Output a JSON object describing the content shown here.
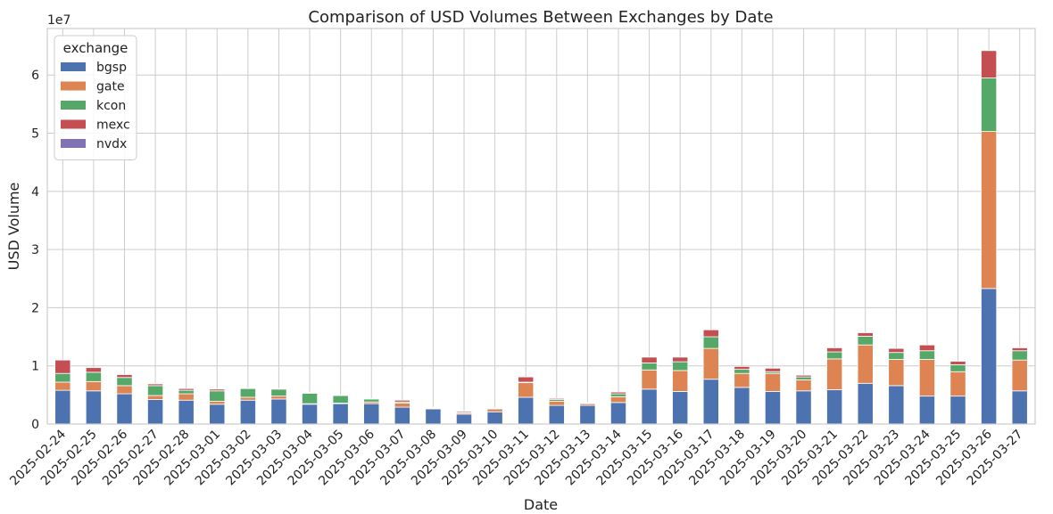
{
  "chart_data": {
    "type": "bar",
    "stacked": true,
    "title": "Comparison of USD Volumes Between Exchanges by Date",
    "xlabel": "Date",
    "ylabel": "USD Volume",
    "offset_label": "1e7",
    "ylim": [
      0,
      6.8
    ],
    "yticks": [
      0,
      1,
      2,
      3,
      4,
      5,
      6
    ],
    "grid": true,
    "legend": {
      "title": "exchange",
      "placement": "upper-left"
    },
    "categories": [
      "2025-02-24",
      "2025-02-25",
      "2025-02-26",
      "2025-02-27",
      "2025-02-28",
      "2025-03-01",
      "2025-03-02",
      "2025-03-03",
      "2025-03-04",
      "2025-03-05",
      "2025-03-06",
      "2025-03-07",
      "2025-03-08",
      "2025-03-09",
      "2025-03-10",
      "2025-03-11",
      "2025-03-12",
      "2025-03-13",
      "2025-03-14",
      "2025-03-15",
      "2025-03-16",
      "2025-03-17",
      "2025-03-18",
      "2025-03-19",
      "2025-03-20",
      "2025-03-21",
      "2025-03-22",
      "2025-03-23",
      "2025-03-24",
      "2025-03-25",
      "2025-03-26",
      "2025-03-27"
    ],
    "series": [
      {
        "name": "bgsp",
        "color": "#4c72b0",
        "values": [
          0.58,
          0.57,
          0.52,
          0.42,
          0.41,
          0.34,
          0.41,
          0.43,
          0.34,
          0.35,
          0.35,
          0.29,
          0.26,
          0.17,
          0.21,
          0.46,
          0.32,
          0.32,
          0.37,
          0.6,
          0.56,
          0.77,
          0.63,
          0.56,
          0.57,
          0.59,
          0.7,
          0.66,
          0.48,
          0.48,
          2.33,
          0.57
        ]
      },
      {
        "name": "gate",
        "color": "#dd8452",
        "values": [
          0.14,
          0.16,
          0.14,
          0.07,
          0.11,
          0.05,
          0.05,
          0.05,
          0.01,
          0.01,
          0.03,
          0.07,
          0.01,
          0.02,
          0.05,
          0.25,
          0.07,
          0.03,
          0.1,
          0.33,
          0.36,
          0.53,
          0.24,
          0.31,
          0.19,
          0.53,
          0.66,
          0.45,
          0.63,
          0.42,
          2.7,
          0.53
        ]
      },
      {
        "name": "kcon",
        "color": "#55a868",
        "values": [
          0.15,
          0.16,
          0.14,
          0.17,
          0.06,
          0.18,
          0.15,
          0.12,
          0.18,
          0.13,
          0.05,
          0.02,
          0.01,
          0.01,
          0.01,
          0.01,
          0.03,
          0.01,
          0.05,
          0.12,
          0.15,
          0.2,
          0.07,
          0.03,
          0.05,
          0.12,
          0.15,
          0.12,
          0.15,
          0.12,
          0.92,
          0.16
        ]
      },
      {
        "name": "mexc",
        "color": "#c44e52",
        "values": [
          0.23,
          0.08,
          0.05,
          0.03,
          0.03,
          0.03,
          0.01,
          0.01,
          0.01,
          0.01,
          0.01,
          0.03,
          0.01,
          0.02,
          0.01,
          0.09,
          0.02,
          0.01,
          0.03,
          0.1,
          0.08,
          0.12,
          0.05,
          0.06,
          0.03,
          0.07,
          0.06,
          0.07,
          0.1,
          0.06,
          0.47,
          0.05
        ]
      },
      {
        "name": "nvdx",
        "color": "#8172b3",
        "values": [
          0,
          0,
          0,
          0,
          0,
          0,
          0,
          0,
          0,
          0,
          0,
          0,
          0,
          0,
          0,
          0,
          0,
          0,
          0,
          0,
          0,
          0,
          0,
          0,
          0,
          0,
          0,
          0,
          0,
          0,
          0,
          0
        ]
      }
    ]
  }
}
